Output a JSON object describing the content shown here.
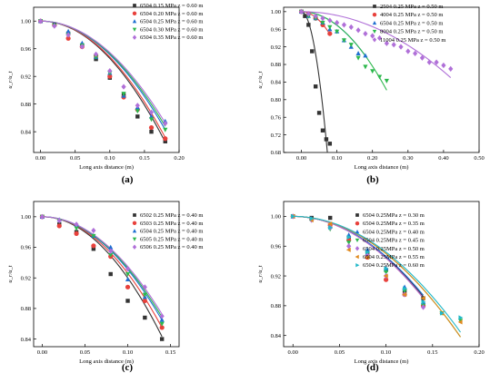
{
  "chart_data": [
    {
      "panel_label": "(a)",
      "type": "scatter",
      "xlabel": "Long axis distance (m)",
      "ylabel": "u_r/u_t",
      "xlim": [
        -0.01,
        0.2
      ],
      "ylim": [
        0.81,
        1.02
      ],
      "xticks": [
        "0.00",
        "0.05",
        "0.10",
        "0.15",
        "0.20"
      ],
      "yticks": [
        "0.84",
        "0.88",
        "0.92",
        "0.96",
        "1.00"
      ],
      "legend_position": "top-right",
      "series": [
        {
          "name": "6504 0.15 MPa z = 0.60 m",
          "color": "#333333",
          "marker": "square",
          "x": [
            0,
            0.02,
            0.04,
            0.06,
            0.08,
            0.1,
            0.12,
            0.14,
            0.16,
            0.18
          ],
          "y": [
            1.0,
            0.995,
            0.982,
            0.965,
            0.945,
            0.918,
            0.893,
            0.862,
            0.84,
            0.826
          ],
          "fit_x": [
            0,
            0.18
          ],
          "fit_y0": 1.0,
          "fit_k": 5.4
        },
        {
          "name": "6504 0.20 MPa z = 0.60 m",
          "color": "#e8413c",
          "marker": "circle",
          "x": [
            0,
            0.02,
            0.04,
            0.06,
            0.08,
            0.1,
            0.12,
            0.14,
            0.16,
            0.18
          ],
          "y": [
            1.0,
            0.994,
            0.975,
            0.963,
            0.95,
            0.92,
            0.89,
            0.872,
            0.846,
            0.83
          ],
          "fit_x": [
            0,
            0.18
          ],
          "fit_y0": 1.0,
          "fit_k": 5.2
        },
        {
          "name": "6504 0.25 MPa z = 0.60 m",
          "color": "#1f6fd1",
          "marker": "triangle-up",
          "x": [
            0,
            0.02,
            0.04,
            0.06,
            0.08,
            0.1,
            0.12,
            0.14,
            0.16,
            0.18
          ],
          "y": [
            1.0,
            0.995,
            0.985,
            0.968,
            0.948,
            0.925,
            0.892,
            0.875,
            0.862,
            0.855
          ],
          "fit_x": [
            0,
            0.18
          ],
          "fit_y0": 1.0,
          "fit_k": 4.85
        },
        {
          "name": "6504 0.30 MPa z = 0.60 m",
          "color": "#2db84d",
          "marker": "triangle-down",
          "x": [
            0,
            0.02,
            0.04,
            0.06,
            0.08,
            0.1,
            0.12,
            0.14,
            0.16,
            0.18
          ],
          "y": [
            1.0,
            0.994,
            0.98,
            0.965,
            0.948,
            0.925,
            0.895,
            0.87,
            0.858,
            0.843
          ],
          "fit_x": [
            0,
            0.18
          ],
          "fit_y0": 1.0,
          "fit_k": 4.7
        },
        {
          "name": "6504 0.35 MPa z = 0.60 m",
          "color": "#b070d8",
          "marker": "diamond",
          "x": [
            0,
            0.02,
            0.04,
            0.06,
            0.08,
            0.1,
            0.12,
            0.14,
            0.16,
            0.18
          ],
          "y": [
            1.0,
            0.993,
            0.98,
            0.963,
            0.952,
            0.928,
            0.905,
            0.878,
            0.868,
            0.852
          ],
          "fit_x": [
            0,
            0.18
          ],
          "fit_y0": 1.0,
          "fit_k": 4.55
        }
      ]
    },
    {
      "panel_label": "(b)",
      "type": "scatter",
      "xlabel": "Long axis distance (m)",
      "ylabel": "u_r/u_t",
      "xlim": [
        -0.05,
        0.5
      ],
      "ylim": [
        0.68,
        1.01
      ],
      "xticks": [
        "0.00",
        "0.10",
        "0.20",
        "0.30",
        "0.40",
        "0.50"
      ],
      "yticks": [
        "0.68",
        "0.72",
        "0.76",
        "0.80",
        "0.84",
        "0.88",
        "0.92",
        "0.96",
        "1.00"
      ],
      "legend_position": "top-right",
      "series": [
        {
          "name": "2504 0.25 MPa z = 0.50 m",
          "color": "#333333",
          "marker": "square",
          "x": [
            0,
            0.01,
            0.02,
            0.03,
            0.04,
            0.05,
            0.06,
            0.07,
            0.08
          ],
          "y": [
            1.0,
            0.99,
            0.97,
            0.91,
            0.83,
            0.77,
            0.73,
            0.71,
            0.7
          ],
          "fit_x": [
            0,
            0.073
          ],
          "fit_y0": 1.0,
          "fit_k": 60
        },
        {
          "name": "4004 0.25 MPa z = 0.50 m",
          "color": "#e8413c",
          "marker": "circle",
          "x": [
            0,
            0.02,
            0.04,
            0.06,
            0.08
          ],
          "y": [
            1.0,
            0.995,
            0.985,
            0.97,
            0.95
          ],
          "fit_x": [
            0,
            0.08
          ],
          "fit_y0": 1.0,
          "fit_k": 8.0
        },
        {
          "name": "6504 0.25 MPa z = 0.50 m",
          "color": "#1f6fd1",
          "marker": "triangle-up",
          "x": [
            0,
            0.02,
            0.04,
            0.06,
            0.08,
            0.1,
            0.12,
            0.14,
            0.16,
            0.18
          ],
          "y": [
            1.0,
            0.99,
            0.985,
            0.975,
            0.96,
            0.955,
            0.935,
            0.92,
            0.905,
            0.9
          ],
          "fit_x": [
            0,
            0.18
          ],
          "fit_y0": 1.0,
          "fit_k": 3.1
        },
        {
          "name": "8004 0.25 MPa z = 0.50 m",
          "color": "#2db84d",
          "marker": "triangle-down",
          "x": [
            0,
            0.02,
            0.04,
            0.06,
            0.08,
            0.1,
            0.12,
            0.14,
            0.16,
            0.18,
            0.2,
            0.22,
            0.24
          ],
          "y": [
            1.0,
            0.99,
            0.985,
            0.975,
            0.965,
            0.955,
            0.935,
            0.925,
            0.895,
            0.875,
            0.865,
            0.852,
            0.843
          ],
          "fit_x": [
            0,
            0.24
          ],
          "fit_y0": 1.0,
          "fit_k": 3.1
        },
        {
          "name": "11004 0.25 MPa z = 0.50 m",
          "color": "#b070d8",
          "marker": "diamond",
          "x": [
            0,
            0.02,
            0.04,
            0.06,
            0.08,
            0.1,
            0.12,
            0.14,
            0.16,
            0.18,
            0.2,
            0.22,
            0.24,
            0.26,
            0.28,
            0.3,
            0.32,
            0.34,
            0.36,
            0.38,
            0.4,
            0.42
          ],
          "y": [
            1.0,
            0.995,
            0.99,
            0.985,
            0.98,
            0.975,
            0.97,
            0.965,
            0.958,
            0.95,
            0.945,
            0.94,
            0.928,
            0.925,
            0.92,
            0.91,
            0.905,
            0.895,
            0.885,
            0.885,
            0.878,
            0.87
          ],
          "fit_x": [
            0,
            0.42
          ],
          "fit_y0": 1.0,
          "fit_k": 0.85
        }
      ]
    },
    {
      "panel_label": "(c)",
      "type": "scatter",
      "xlabel": "Long axis distance (m)",
      "ylabel": "u_r/u_t",
      "xlim": [
        -0.01,
        0.16
      ],
      "ylim": [
        0.83,
        1.02
      ],
      "xticks": [
        "0.00",
        "0.05",
        "0.10",
        "0.15"
      ],
      "yticks": [
        "0.84",
        "0.88",
        "0.92",
        "0.96",
        "1.00"
      ],
      "legend_position": "top-right",
      "series": [
        {
          "name": "6502 0.25 MPa z = 0.40 m",
          "color": "#333333",
          "marker": "square",
          "x": [
            0,
            0.02,
            0.04,
            0.06,
            0.08,
            0.1,
            0.12,
            0.14
          ],
          "y": [
            1.0,
            0.99,
            0.98,
            0.958,
            0.925,
            0.89,
            0.868,
            0.84
          ],
          "fit_x": [
            0,
            0.14
          ],
          "fit_y0": 1.0,
          "fit_k": 8.0
        },
        {
          "name": "6503 0.25 MPa z = 0.40 m",
          "color": "#e8413c",
          "marker": "circle",
          "x": [
            0,
            0.02,
            0.04,
            0.06,
            0.08,
            0.1,
            0.12,
            0.14
          ],
          "y": [
            1.0,
            0.988,
            0.978,
            0.962,
            0.948,
            0.908,
            0.89,
            0.855
          ],
          "fit_x": [
            0,
            0.14
          ],
          "fit_y0": 1.0,
          "fit_k": 7.4
        },
        {
          "name": "6504 0.25 MPa z = 0.40 m",
          "color": "#1f6fd1",
          "marker": "triangle-up",
          "x": [
            0,
            0.02,
            0.04,
            0.06,
            0.08,
            0.1,
            0.12,
            0.14
          ],
          "y": [
            1.0,
            0.996,
            0.99,
            0.975,
            0.96,
            0.918,
            0.895,
            0.865
          ],
          "fit_x": [
            0,
            0.14
          ],
          "fit_y0": 1.0,
          "fit_k": 6.9
        },
        {
          "name": "6505 0.25 MPa z = 0.40 m",
          "color": "#2db84d",
          "marker": "triangle-down",
          "x": [
            0,
            0.02,
            0.04,
            0.06,
            0.08,
            0.1,
            0.12,
            0.14
          ],
          "y": [
            1.0,
            0.995,
            0.985,
            0.975,
            0.95,
            0.925,
            0.898,
            0.86
          ],
          "fit_x": [
            0,
            0.14
          ],
          "fit_y0": 1.0,
          "fit_k": 6.7
        },
        {
          "name": "6506 0.25 MPa z = 0.40 m",
          "color": "#b070d8",
          "marker": "diamond",
          "x": [
            0,
            0.02,
            0.04,
            0.06,
            0.08,
            0.1,
            0.12,
            0.14
          ],
          "y": [
            1.0,
            0.995,
            0.99,
            0.982,
            0.955,
            0.932,
            0.908,
            0.87
          ],
          "fit_x": [
            0,
            0.14
          ],
          "fit_y0": 1.0,
          "fit_k": 6.5
        }
      ]
    },
    {
      "panel_label": "(d)",
      "type": "scatter",
      "xlabel": "Long axis distance (m)",
      "ylabel": "u_r/u_t",
      "xlim": [
        -0.01,
        0.2
      ],
      "ylim": [
        0.825,
        1.02
      ],
      "xticks": [
        "0.00",
        "0.05",
        "0.10",
        "0.15",
        "0.20"
      ],
      "yticks": [
        "0.84",
        "0.88",
        "0.92",
        "0.96",
        "1.00"
      ],
      "legend_position": "top-right",
      "series": [
        {
          "name": "6504 0.25MPa z = 0.30 m",
          "color": "#333333",
          "marker": "square",
          "x": [
            0,
            0.02,
            0.04,
            0.06,
            0.08,
            0.1,
            0.12,
            0.14
          ],
          "y": [
            1.0,
            0.998,
            0.998,
            0.97,
            0.95,
            0.928,
            0.9,
            0.89
          ],
          "fit_x": [
            0,
            0.14
          ],
          "fit_y0": 1.0,
          "fit_k": 5.5
        },
        {
          "name": "6504 0.25MPa z = 0.35 m",
          "color": "#e8413c",
          "marker": "circle",
          "x": [
            0,
            0.02,
            0.04,
            0.06,
            0.08,
            0.1,
            0.12,
            0.14
          ],
          "y": [
            1.0,
            0.996,
            0.988,
            0.968,
            0.945,
            0.915,
            0.895,
            0.88
          ],
          "fit_x": [
            0,
            0.14
          ],
          "fit_y0": 1.0,
          "fit_k": 5.6
        },
        {
          "name": "6504 0.25MPa z = 0.40 m",
          "color": "#1f6fd1",
          "marker": "triangle-up",
          "x": [
            0,
            0.02,
            0.04,
            0.06,
            0.08,
            0.1,
            0.12,
            0.14
          ],
          "y": [
            1.0,
            0.997,
            0.986,
            0.975,
            0.955,
            0.93,
            0.905,
            0.885
          ],
          "fit_x": [
            0,
            0.14
          ],
          "fit_y0": 1.0,
          "fit_k": 5.4
        },
        {
          "name": "6504 0.25MPa z = 0.45 m",
          "color": "#2db84d",
          "marker": "triangle-down",
          "x": [
            0,
            0.02,
            0.04,
            0.06,
            0.08,
            0.1,
            0.12,
            0.14,
            0.16,
            0.18
          ],
          "y": [
            1.0,
            0.996,
            0.983,
            0.965,
            0.95,
            0.925,
            0.9,
            0.88,
            0.87,
            0.86
          ],
          "fit_x": [
            0,
            0.18
          ],
          "fit_y0": 1.0,
          "fit_k": 5.0
        },
        {
          "name": "6504 0.25MPa z = 0.50 m",
          "color": "#b070d8",
          "marker": "diamond",
          "x": [
            0,
            0.02,
            0.04,
            0.06,
            0.08,
            0.1,
            0.12,
            0.14
          ],
          "y": [
            1.0,
            0.995,
            0.985,
            0.96,
            0.948,
            0.92,
            0.895,
            0.878
          ],
          "fit_x": [
            0,
            0.14
          ],
          "fit_y0": 1.0,
          "fit_k": 5.6
        },
        {
          "name": "6504 0.25MPa z = 0.55 m",
          "color": "#e08a1e",
          "marker": "triangle-left",
          "x": [
            0,
            0.02,
            0.04,
            0.06,
            0.08,
            0.1,
            0.12,
            0.14,
            0.16,
            0.18
          ],
          "y": [
            1.0,
            0.995,
            0.99,
            0.955,
            0.945,
            0.92,
            0.895,
            0.89,
            0.87,
            0.858
          ],
          "fit_x": [
            0,
            0.18
          ],
          "fit_y0": 1.0,
          "fit_k": 5.0
        },
        {
          "name": "6504 0.25MPa z = 0.60 m",
          "color": "#22b8c8",
          "marker": "triangle-right",
          "x": [
            0,
            0.02,
            0.04,
            0.06,
            0.08,
            0.1,
            0.12,
            0.14,
            0.16,
            0.18
          ],
          "y": [
            1.0,
            0.997,
            0.985,
            0.972,
            0.952,
            0.93,
            0.903,
            0.885,
            0.87,
            0.864
          ],
          "fit_x": [
            0,
            0.18
          ],
          "fit_y0": 1.0,
          "fit_k": 4.8
        }
      ]
    }
  ]
}
